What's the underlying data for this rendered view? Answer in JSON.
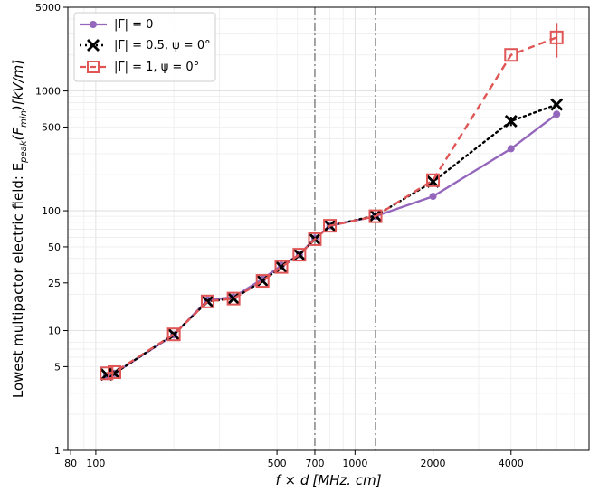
{
  "chart_data": {
    "type": "line",
    "x_scale": "log",
    "y_scale": "log",
    "xlabel_prefix": "f × d",
    "xlabel_unit": "[MHz. cm]",
    "ylabel_prefix": "Lowest multipactor electric field: E",
    "ylabel_sub": "peak",
    "ylabel_arg": "(F",
    "ylabel_arg_sub": "min",
    "ylabel_suffix": ")[kV/m]",
    "xlim": [
      78,
      8000
    ],
    "ylim": [
      1,
      5000
    ],
    "x_ticks": [
      {
        "value": 80,
        "label": "80"
      },
      {
        "value": 100,
        "label": "100"
      },
      {
        "value": 500,
        "label": "500"
      },
      {
        "value": 700,
        "label": "700"
      },
      {
        "value": 1000,
        "label": "1000"
      },
      {
        "value": 2000,
        "label": "2000"
      },
      {
        "value": 4000,
        "label": "4000"
      }
    ],
    "y_ticks": [
      {
        "value": 1,
        "label": "1"
      },
      {
        "value": 5,
        "label": "5"
      },
      {
        "value": 10,
        "label": "10"
      },
      {
        "value": 25,
        "label": "25"
      },
      {
        "value": 50,
        "label": "50"
      },
      {
        "value": 100,
        "label": "100"
      },
      {
        "value": 500,
        "label": "500"
      },
      {
        "value": 1000,
        "label": "1000"
      },
      {
        "value": 5000,
        "label": "5000"
      }
    ],
    "vlines": [
      700,
      1200
    ],
    "grid": true,
    "legend_position": "top-left",
    "series": [
      {
        "name": "|Γ| = 0",
        "color": "#9467bd",
        "marker": "circle",
        "linestyle": "solid",
        "x": [
          110,
          118,
          200,
          270,
          340,
          440,
          520,
          610,
          700,
          800,
          1200,
          2000,
          4000,
          6000
        ],
        "y": [
          4.2,
          4.4,
          9.2,
          18,
          19,
          27,
          35,
          43,
          59,
          75,
          90,
          132,
          330,
          640
        ],
        "yerr": [
          0,
          0,
          0,
          0,
          0,
          0,
          0,
          0,
          0,
          0,
          0,
          0,
          0,
          0
        ]
      },
      {
        "name": "|Γ| = 0.5, ψ = 0°",
        "color": "#000000",
        "marker": "x",
        "linestyle": "dotted",
        "x": [
          110,
          118,
          200,
          270,
          340,
          440,
          520,
          610,
          700,
          800,
          1200,
          2000,
          4000,
          6000
        ],
        "y": [
          4.3,
          4.4,
          9.3,
          17.5,
          18.5,
          26,
          34,
          43,
          58,
          75,
          91,
          175,
          560,
          770
        ],
        "yerr": [
          0,
          0,
          0,
          0,
          0,
          0,
          0,
          0,
          0,
          0,
          0,
          0,
          50,
          0
        ]
      },
      {
        "name": "|Γ| = 1, ψ = 0°",
        "color": "#e05555",
        "marker": "square",
        "linestyle": "dashed",
        "x": [
          110,
          118,
          200,
          270,
          340,
          440,
          520,
          610,
          700,
          800,
          1200,
          2000,
          4000,
          6000
        ],
        "y": [
          4.4,
          4.5,
          9.3,
          17.5,
          18.5,
          26,
          34,
          43,
          58,
          75,
          90,
          180,
          2000,
          2800
        ],
        "yerr": [
          0,
          0,
          0,
          0,
          0,
          0,
          0,
          0,
          0,
          0,
          0,
          0,
          0,
          900
        ]
      }
    ]
  }
}
